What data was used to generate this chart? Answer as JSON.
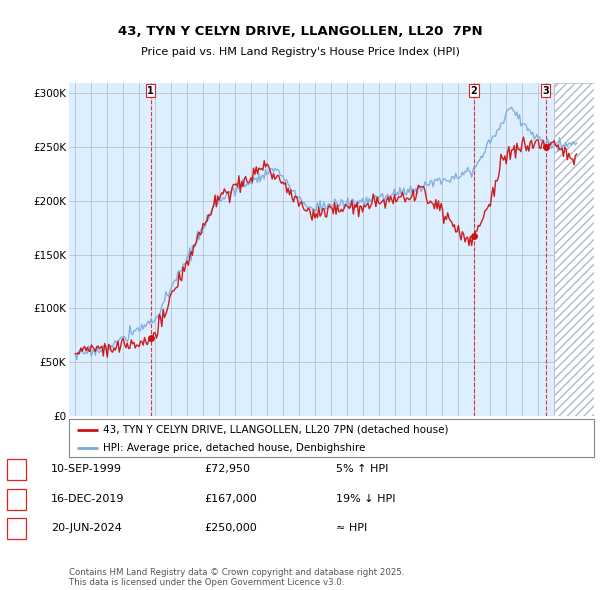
{
  "title": "43, TYN Y CELYN DRIVE, LLANGOLLEN, LL20  7PN",
  "subtitle": "Price paid vs. HM Land Registry's House Price Index (HPI)",
  "ylim": [
    0,
    310000
  ],
  "yticks": [
    0,
    50000,
    100000,
    150000,
    200000,
    250000,
    300000
  ],
  "ytick_labels": [
    "£0",
    "£50K",
    "£100K",
    "£150K",
    "£200K",
    "£250K",
    "£300K"
  ],
  "sale_dates": [
    1999.71,
    2019.96,
    2024.47
  ],
  "sale_prices": [
    72950,
    167000,
    250000
  ],
  "sale_labels": [
    "1",
    "2",
    "3"
  ],
  "vline_color": "#dd2222",
  "hpi_color": "#7aaadd",
  "price_color": "#cc1111",
  "legend_property": "43, TYN Y CELYN DRIVE, LLANGOLLEN, LL20 7PN (detached house)",
  "legend_hpi": "HPI: Average price, detached house, Denbighshire",
  "table_data": [
    [
      "1",
      "10-SEP-1999",
      "£72,950",
      "5% ↑ HPI"
    ],
    [
      "2",
      "16-DEC-2019",
      "£167,000",
      "19% ↓ HPI"
    ],
    [
      "3",
      "20-JUN-2024",
      "£250,000",
      "≈ HPI"
    ]
  ],
  "footer": "Contains HM Land Registry data © Crown copyright and database right 2025.\nThis data is licensed under the Open Government Licence v3.0.",
  "bg_color": "#ffffff",
  "chart_bg": "#ddeeff",
  "grid_color": "#aabbcc",
  "hatch_start": 2025.0,
  "xlim": [
    1994.6,
    2027.5
  ],
  "xtick_start": 1995,
  "xtick_end": 2027
}
